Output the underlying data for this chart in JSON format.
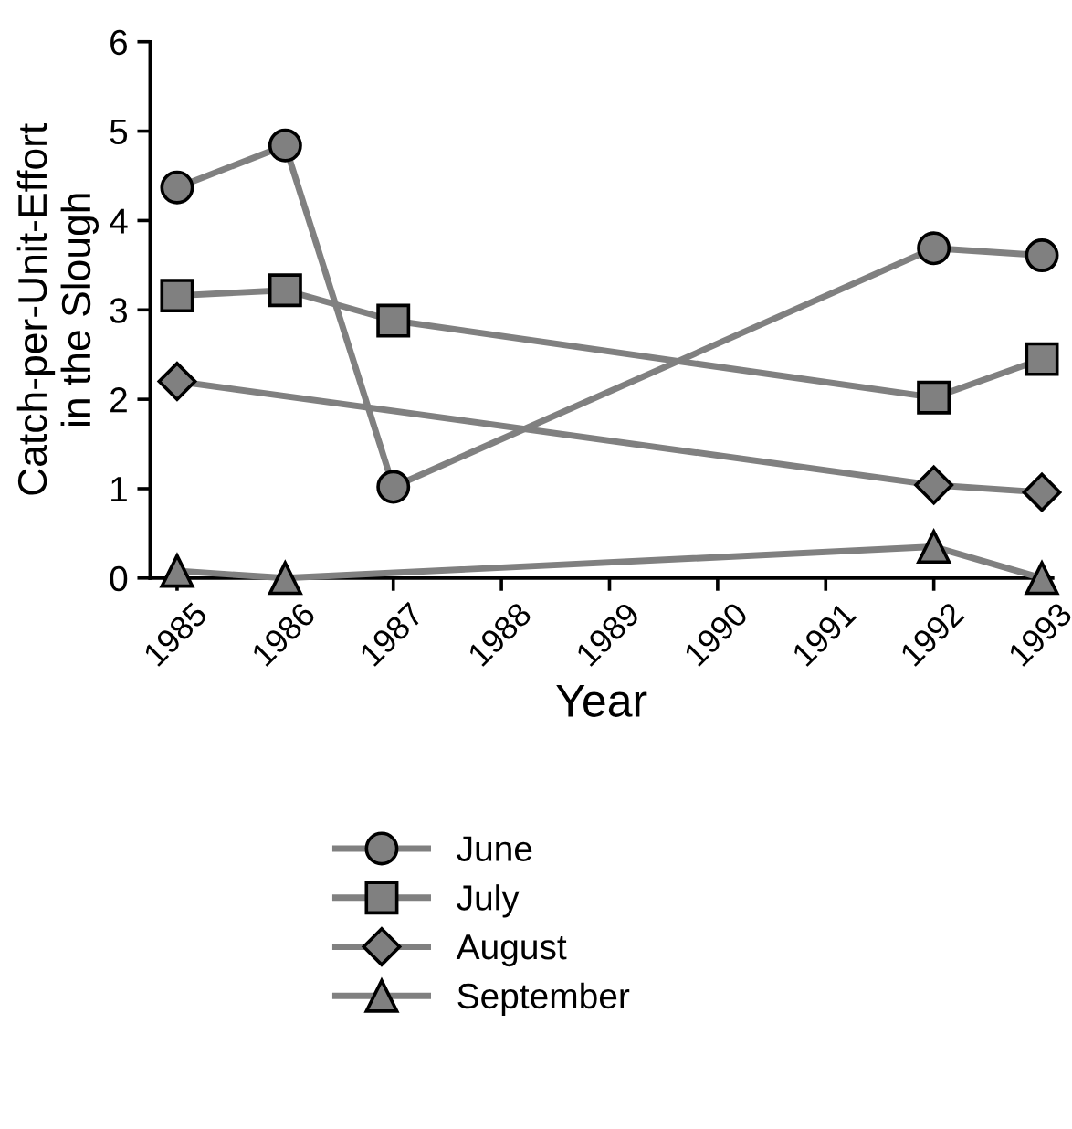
{
  "chart_data": {
    "type": "line",
    "xlabel": "Year",
    "ylabel": "Catch-per-Unit-Effort\nin the Slough",
    "xlim": [
      1984.75,
      1993.1
    ],
    "xticks": [
      1985,
      1986,
      1987,
      1988,
      1989,
      1990,
      1991,
      1992,
      1993
    ],
    "ylim": [
      0,
      6
    ],
    "yticks": [
      0,
      1,
      2,
      3,
      4,
      5,
      6
    ],
    "grid": false,
    "legend": "bottom",
    "line_style": "solid",
    "series": [
      {
        "name": "June",
        "color": "#808080",
        "marker": "circle",
        "x": [
          1985,
          1986,
          1987,
          1992,
          1993
        ],
        "values": [
          4.37,
          4.84,
          1.02,
          3.69,
          3.61
        ]
      },
      {
        "name": "July",
        "color": "#808080",
        "marker": "square",
        "x": [
          1985,
          1986,
          1987,
          1992,
          1993
        ],
        "values": [
          3.16,
          3.22,
          2.88,
          2.02,
          2.45
        ]
      },
      {
        "name": "August",
        "color": "#808080",
        "marker": "diamond",
        "x": [
          1985,
          1992,
          1993
        ],
        "values": [
          2.2,
          1.04,
          0.96
        ]
      },
      {
        "name": "September",
        "color": "#808080",
        "marker": "triangle",
        "x": [
          1985,
          1986,
          1992,
          1993
        ],
        "values": [
          0.08,
          0.0,
          0.35,
          0.0
        ]
      }
    ]
  }
}
